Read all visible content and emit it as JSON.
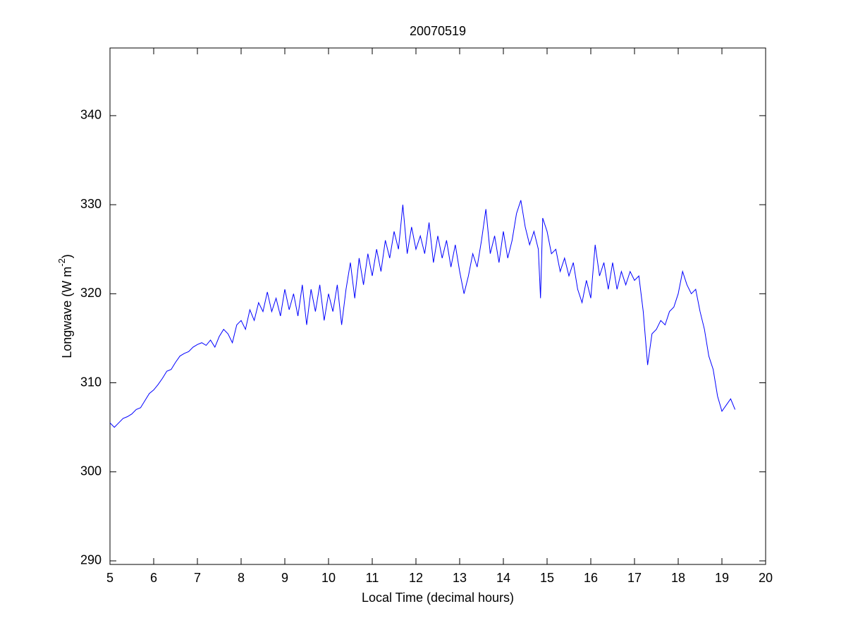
{
  "chart_data": {
    "type": "line",
    "title": "20070519",
    "xlabel": "Local Time (decimal hours)",
    "ylabel": [
      "Longwave (W m",
      "-2",
      ")"
    ],
    "xlim": [
      5,
      20
    ],
    "xticks": [
      5,
      6,
      7,
      8,
      9,
      10,
      11,
      12,
      13,
      14,
      15,
      16,
      17,
      18,
      19,
      20
    ],
    "ylim": [
      289.6,
      347.6
    ],
    "yticks": [
      290,
      300,
      310,
      320,
      330,
      340
    ],
    "grid": false,
    "series": [
      {
        "color": "#0000ff",
        "x": [
          5.0,
          5.1,
          5.2,
          5.3,
          5.4,
          5.5,
          5.6,
          5.7,
          5.8,
          5.9,
          6.0,
          6.1,
          6.2,
          6.3,
          6.4,
          6.5,
          6.6,
          6.7,
          6.8,
          6.9,
          7.0,
          7.1,
          7.2,
          7.3,
          7.4,
          7.5,
          7.6,
          7.7,
          7.8,
          7.9,
          8.0,
          8.1,
          8.2,
          8.3,
          8.4,
          8.5,
          8.6,
          8.7,
          8.8,
          8.9,
          9.0,
          9.1,
          9.2,
          9.3,
          9.4,
          9.5,
          9.6,
          9.7,
          9.8,
          9.9,
          10.0,
          10.1,
          10.2,
          10.3,
          10.4,
          10.5,
          10.6,
          10.7,
          10.8,
          10.9,
          11.0,
          11.1,
          11.2,
          11.3,
          11.4,
          11.5,
          11.6,
          11.7,
          11.8,
          11.9,
          12.0,
          12.1,
          12.2,
          12.3,
          12.4,
          12.5,
          12.6,
          12.7,
          12.8,
          12.9,
          13.0,
          13.1,
          13.2,
          13.3,
          13.4,
          13.5,
          13.6,
          13.7,
          13.8,
          13.9,
          14.0,
          14.1,
          14.2,
          14.3,
          14.4,
          14.5,
          14.6,
          14.7,
          14.8,
          14.85,
          14.9,
          15.0,
          15.1,
          15.2,
          15.3,
          15.4,
          15.5,
          15.6,
          15.7,
          15.8,
          15.9,
          16.0,
          16.1,
          16.2,
          16.3,
          16.4,
          16.5,
          16.6,
          16.7,
          16.8,
          16.9,
          17.0,
          17.1,
          17.2,
          17.3,
          17.4,
          17.5,
          17.6,
          17.7,
          17.8,
          17.9,
          18.0,
          18.1,
          18.2,
          18.3,
          18.4,
          18.5,
          18.6,
          18.7,
          18.8,
          18.9,
          19.0,
          19.1,
          19.2,
          19.3
        ],
        "values": [
          305.5,
          305.0,
          305.5,
          306.0,
          306.2,
          306.5,
          307.0,
          307.2,
          308.0,
          308.8,
          309.2,
          309.8,
          310.5,
          311.3,
          311.5,
          312.3,
          313.0,
          313.3,
          313.5,
          314.0,
          314.3,
          314.5,
          314.2,
          314.8,
          314.0,
          315.2,
          316.0,
          315.5,
          314.5,
          316.5,
          317.0,
          316.0,
          318.2,
          317.0,
          319.0,
          318.0,
          320.2,
          318.0,
          319.5,
          317.5,
          320.5,
          318.2,
          320.0,
          317.5,
          321.0,
          316.5,
          320.5,
          318.0,
          321.0,
          317.0,
          320.0,
          318.0,
          321.0,
          316.5,
          320.5,
          323.5,
          319.5,
          324.0,
          321.0,
          324.5,
          322.0,
          325.0,
          322.5,
          326.0,
          324.0,
          327.0,
          325.0,
          330.0,
          324.5,
          327.5,
          325.0,
          326.5,
          324.5,
          328.0,
          323.5,
          326.5,
          324.0,
          326.0,
          323.0,
          325.5,
          322.5,
          320.0,
          322.0,
          324.5,
          323.0,
          326.0,
          329.5,
          324.5,
          326.5,
          323.5,
          327.0,
          324.0,
          326.0,
          329.0,
          330.5,
          327.5,
          325.5,
          327.0,
          325.0,
          319.5,
          328.5,
          327.0,
          324.5,
          325.0,
          322.5,
          324.0,
          322.0,
          323.5,
          320.5,
          319.0,
          321.5,
          319.5,
          325.5,
          322.0,
          323.5,
          320.5,
          323.5,
          320.5,
          322.5,
          321.0,
          322.5,
          321.5,
          322.0,
          318.0,
          312.0,
          315.5,
          316.0,
          317.0,
          316.5,
          318.0,
          318.5,
          320.0,
          322.5,
          321.0,
          320.0,
          320.5,
          318.0,
          316.0,
          313.0,
          311.5,
          308.5,
          306.8,
          307.5,
          308.2,
          307.0
        ]
      }
    ]
  }
}
